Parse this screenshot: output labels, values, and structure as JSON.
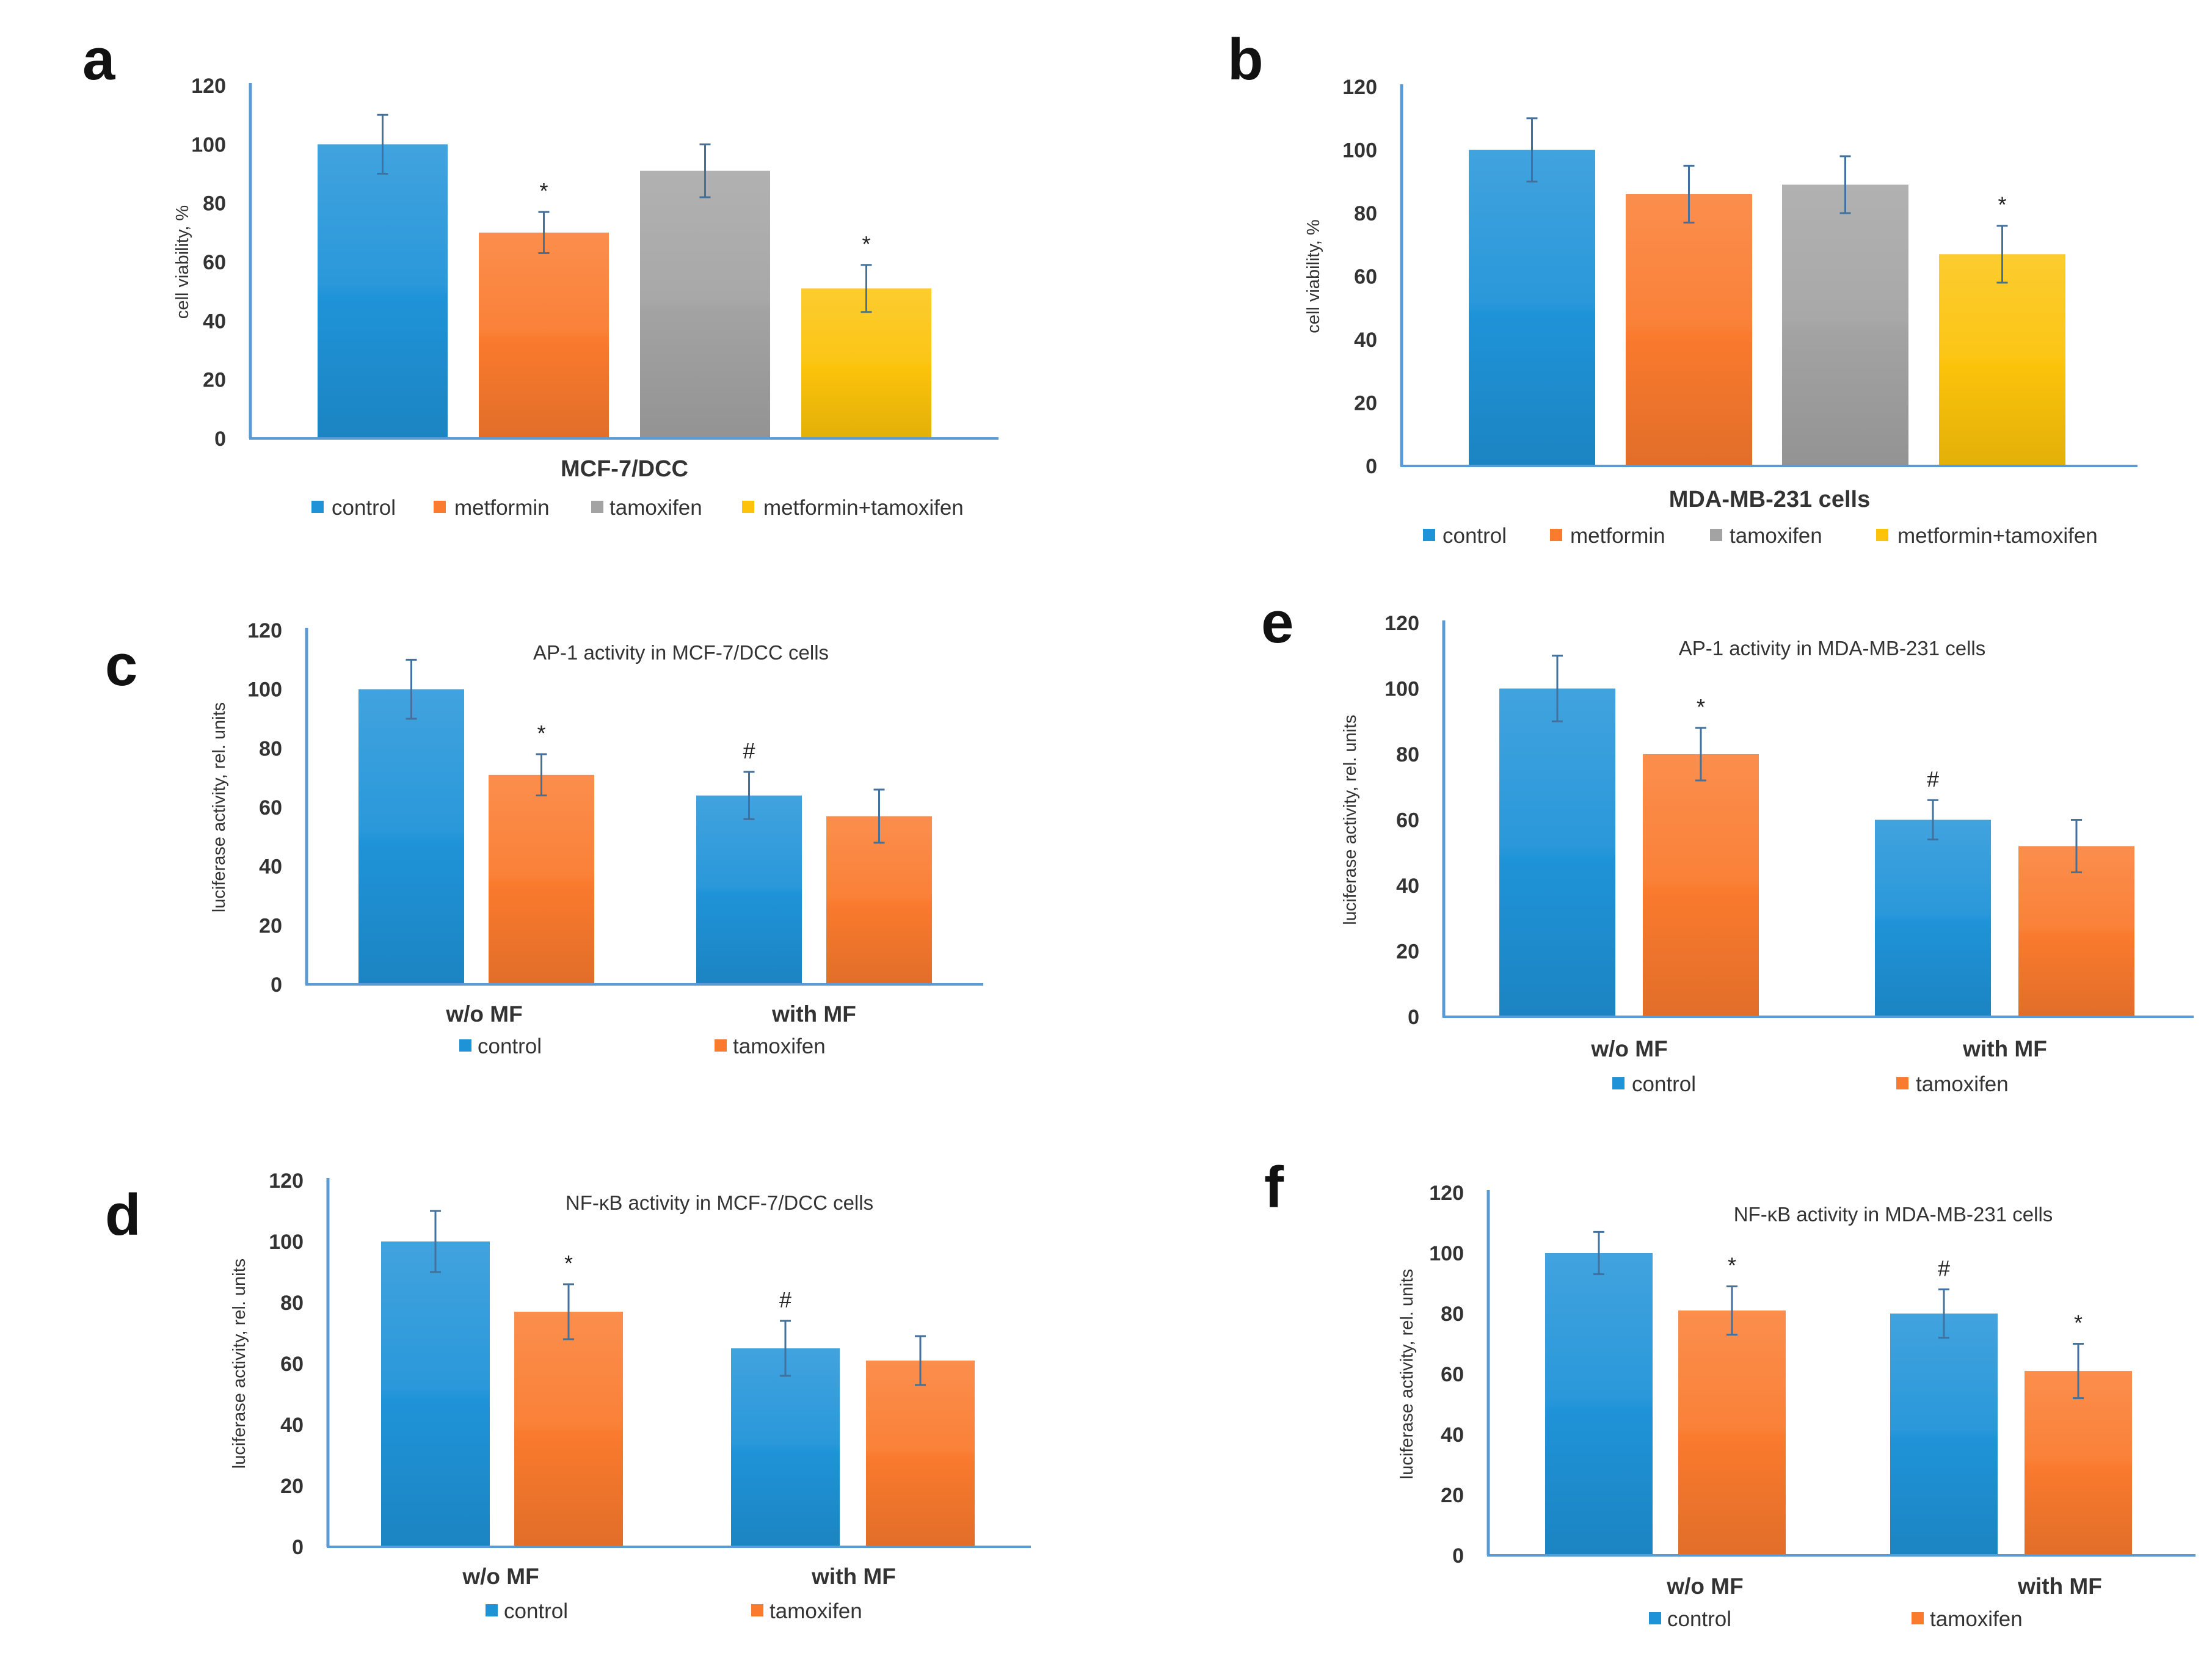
{
  "colors": {
    "control": "#1f93d8",
    "metformin": "#fa7a2e",
    "tamoxifen_grey": "#a3a3a3",
    "metformin_tamoxifen": "#fcc30a",
    "tamoxifen_orange": "#fa7a2e",
    "axis": "#5b9bd5",
    "errorbar": "#41719c"
  },
  "chart_data": [
    {
      "panel": "a",
      "type": "bar",
      "title": "",
      "xlabel": "MCF-7/DCC",
      "ylabel": "cell viability, %",
      "ylim": [
        0,
        120
      ],
      "yticks": [
        "0",
        "20",
        "40",
        "60",
        "80",
        "100",
        "120"
      ],
      "categories": [
        ""
      ],
      "series": [
        {
          "name": "control",
          "color": "control",
          "values": [
            100
          ],
          "errors": [
            10
          ],
          "annotations": [
            ""
          ]
        },
        {
          "name": "metformin",
          "color": "metformin",
          "values": [
            70
          ],
          "errors": [
            7
          ],
          "annotations": [
            "*"
          ]
        },
        {
          "name": "tamoxifen",
          "color": "tamoxifen_grey",
          "values": [
            91
          ],
          "errors": [
            9
          ],
          "annotations": [
            ""
          ]
        },
        {
          "name": "metformin+tamoxifen",
          "color": "metformin_tamoxifen",
          "values": [
            51
          ],
          "errors": [
            8
          ],
          "annotations": [
            "*"
          ]
        }
      ]
    },
    {
      "panel": "b",
      "type": "bar",
      "title": "",
      "xlabel": "MDA-MB-231 cells",
      "ylabel": "cell viability, %",
      "ylim": [
        0,
        120
      ],
      "yticks": [
        "0",
        "20",
        "40",
        "60",
        "80",
        "100",
        "120"
      ],
      "categories": [
        ""
      ],
      "series": [
        {
          "name": "control",
          "color": "control",
          "values": [
            100
          ],
          "errors": [
            10
          ],
          "annotations": [
            ""
          ]
        },
        {
          "name": "metformin",
          "color": "metformin",
          "values": [
            86
          ],
          "errors": [
            9
          ],
          "annotations": [
            ""
          ]
        },
        {
          "name": "tamoxifen",
          "color": "tamoxifen_grey",
          "values": [
            89
          ],
          "errors": [
            9
          ],
          "annotations": [
            ""
          ]
        },
        {
          "name": "metformin+tamoxifen",
          "color": "metformin_tamoxifen",
          "values": [
            67
          ],
          "errors": [
            9
          ],
          "annotations": [
            "*"
          ]
        }
      ]
    },
    {
      "panel": "c",
      "type": "bar",
      "title": "AP-1 activity in MCF-7/DCC cells",
      "xlabel": "",
      "ylabel": "luciferase activity, rel. units",
      "ylim": [
        0,
        120
      ],
      "yticks": [
        "0",
        "20",
        "40",
        "60",
        "80",
        "100",
        "120"
      ],
      "categories": [
        "w/o MF",
        "with MF"
      ],
      "series": [
        {
          "name": "control",
          "color": "control",
          "values": [
            100,
            64
          ],
          "errors": [
            10,
            8
          ],
          "annotations": [
            "",
            "#"
          ]
        },
        {
          "name": "tamoxifen",
          "color": "tamoxifen_orange",
          "values": [
            71,
            57
          ],
          "errors": [
            7,
            9
          ],
          "annotations": [
            "*",
            ""
          ]
        }
      ]
    },
    {
      "panel": "d",
      "type": "bar",
      "title": "NF-κB activity in MCF-7/DCC cells",
      "xlabel": "",
      "ylabel": "luciferase activity, rel. units",
      "ylim": [
        0,
        120
      ],
      "yticks": [
        "0",
        "20",
        "40",
        "60",
        "80",
        "100",
        "120"
      ],
      "categories": [
        "w/o MF",
        "with MF"
      ],
      "series": [
        {
          "name": "control",
          "color": "control",
          "values": [
            100,
            65
          ],
          "errors": [
            10,
            9
          ],
          "annotations": [
            "",
            "#"
          ]
        },
        {
          "name": "tamoxifen",
          "color": "tamoxifen_orange",
          "values": [
            77,
            61
          ],
          "errors": [
            9,
            8
          ],
          "annotations": [
            "*",
            ""
          ]
        }
      ]
    },
    {
      "panel": "e",
      "type": "bar",
      "title": "AP-1 activity in MDA-MB-231 cells",
      "xlabel": "",
      "ylabel": "luciferase activity, rel. units",
      "ylim": [
        0,
        120
      ],
      "yticks": [
        "0",
        "20",
        "40",
        "60",
        "80",
        "100",
        "120"
      ],
      "categories": [
        "w/o MF",
        "with MF"
      ],
      "series": [
        {
          "name": "control",
          "color": "control",
          "values": [
            100,
            60
          ],
          "errors": [
            10,
            6
          ],
          "annotations": [
            "",
            "#"
          ]
        },
        {
          "name": "tamoxifen",
          "color": "tamoxifen_orange",
          "values": [
            80,
            52
          ],
          "errors": [
            8,
            8
          ],
          "annotations": [
            "*",
            ""
          ]
        }
      ]
    },
    {
      "panel": "f",
      "type": "bar",
      "title": "NF-κB activity in MDA-MB-231 cells",
      "xlabel": "",
      "ylabel": "luciferase activity, rel. units",
      "ylim": [
        0,
        120
      ],
      "yticks": [
        "0",
        "20",
        "40",
        "60",
        "80",
        "100",
        "120"
      ],
      "categories": [
        "w/o MF",
        "with MF"
      ],
      "series": [
        {
          "name": "control",
          "color": "control",
          "values": [
            100,
            80
          ],
          "errors": [
            7,
            8
          ],
          "annotations": [
            "",
            "#"
          ]
        },
        {
          "name": "tamoxifen",
          "color": "tamoxifen_orange",
          "values": [
            81,
            61
          ],
          "errors": [
            8,
            9
          ],
          "annotations": [
            "*",
            "*"
          ]
        }
      ]
    }
  ]
}
